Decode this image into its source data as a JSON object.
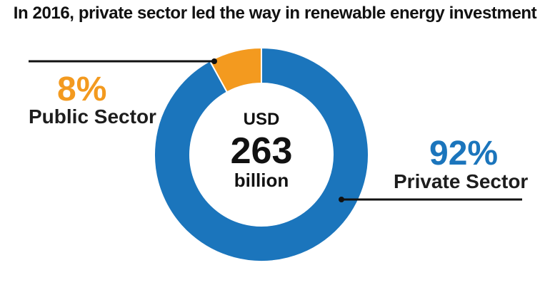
{
  "title": "In 2016, private sector led the way in renewable energy investment",
  "center": {
    "top": "USD",
    "value": "263",
    "bottom": "billion"
  },
  "colors": {
    "private": "#1b75bc",
    "public": "#f39a1f",
    "leader": "#111111"
  },
  "chart_data": {
    "type": "pie",
    "title": "In 2016, private sector led the way in renewable energy investment",
    "total_label": "USD 263 billion",
    "slices": [
      {
        "label": "Private Sector",
        "percent_label": "92%",
        "value": 92,
        "color": "#1b75bc"
      },
      {
        "label": "Public Sector",
        "percent_label": "8%",
        "value": 8,
        "color": "#f39a1f"
      }
    ]
  }
}
